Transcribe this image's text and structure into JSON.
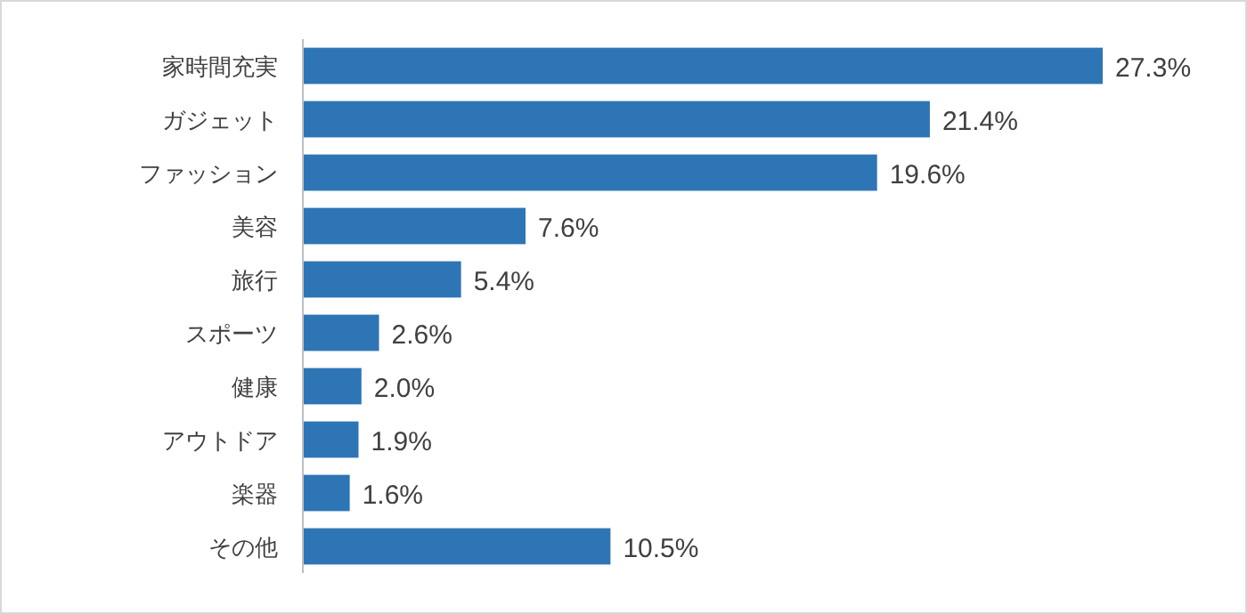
{
  "chart_data": {
    "type": "bar",
    "orientation": "horizontal",
    "color": "#2e75b6",
    "categories": [
      "家時間充実",
      "ガジェット",
      "ファッション",
      "美容",
      "旅行",
      "スポーツ",
      "健康",
      "アウトドア",
      "楽器",
      "その他"
    ],
    "values": [
      27.3,
      21.4,
      19.6,
      7.6,
      5.4,
      2.6,
      2.0,
      1.9,
      1.6,
      10.5
    ],
    "value_labels": [
      "27.3%",
      "21.4%",
      "19.6%",
      "7.6%",
      "5.4%",
      "2.6%",
      "2.0%",
      "1.9%",
      "1.6%",
      "10.5%"
    ]
  }
}
